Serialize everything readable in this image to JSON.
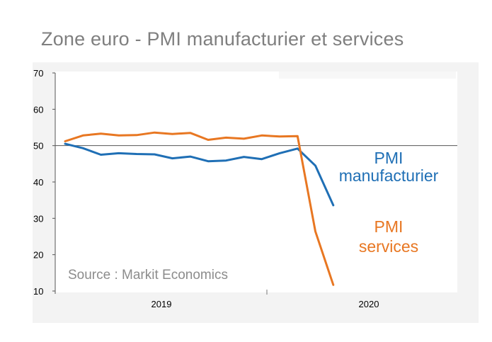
{
  "chart_data": {
    "type": "line",
    "title": "Zone euro - PMI manufacturier et services",
    "source": "Source : Markit Economics",
    "xlabel": "",
    "ylabel": "",
    "ylim": [
      10,
      70
    ],
    "yticks": [
      "10",
      "20",
      "30",
      "40",
      "50",
      "60",
      "70"
    ],
    "reference_line": 50,
    "x_years": [
      "2019",
      "2020"
    ],
    "x": [
      "2019-01",
      "2019-02",
      "2019-03",
      "2019-04",
      "2019-05",
      "2019-06",
      "2019-07",
      "2019-08",
      "2019-09",
      "2019-10",
      "2019-11",
      "2019-12",
      "2020-01",
      "2020-02",
      "2020-03",
      "2020-04"
    ],
    "series": [
      {
        "name": "PMI manufacturier",
        "label_lines": [
          "PMI",
          "manufacturier"
        ],
        "color": "#1f6fb5",
        "values": [
          50.5,
          49.3,
          47.5,
          47.9,
          47.7,
          47.6,
          46.5,
          47.0,
          45.7,
          45.9,
          46.9,
          46.3,
          47.9,
          49.2,
          44.5,
          33.6
        ]
      },
      {
        "name": "PMI services",
        "label_lines": [
          "PMI",
          "services"
        ],
        "color": "#e87722",
        "values": [
          51.2,
          52.8,
          53.3,
          52.8,
          52.9,
          53.6,
          53.2,
          53.5,
          51.6,
          52.2,
          51.9,
          52.8,
          52.5,
          52.6,
          26.4,
          11.7
        ]
      }
    ]
  }
}
